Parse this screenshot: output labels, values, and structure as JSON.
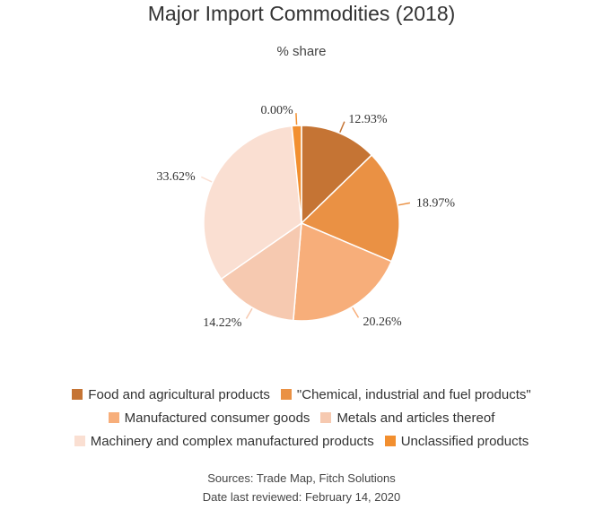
{
  "chart_data": {
    "type": "pie",
    "title": "Major Import Commodities (2018)",
    "subtitle": "% share",
    "series": [
      {
        "name": "Food and agricultural products",
        "value": 12.93,
        "label": "12.93%",
        "color": "#C57434"
      },
      {
        "name": "\"Chemical, industrial and fuel products\"",
        "value": 18.97,
        "label": "18.97%",
        "color": "#EA9144"
      },
      {
        "name": "Manufactured consumer goods",
        "value": 20.26,
        "label": "20.26%",
        "color": "#F7AE7A"
      },
      {
        "name": "Metals and articles thereof",
        "value": 14.22,
        "label": "14.22%",
        "color": "#F6C9B0"
      },
      {
        "name": "Machinery and complex manufactured products",
        "value": 33.62,
        "label": "33.62%",
        "color": "#FADFD2"
      },
      {
        "name": "Unclassified products",
        "value": 0.0,
        "label": "0.00%",
        "color": "#F28F2F",
        "display_value": 1.6
      }
    ],
    "legend_position": "bottom"
  },
  "footer": {
    "sources": "Sources: Trade Map, Fitch Solutions",
    "reviewed": "Date last reviewed: February 14, 2020"
  }
}
